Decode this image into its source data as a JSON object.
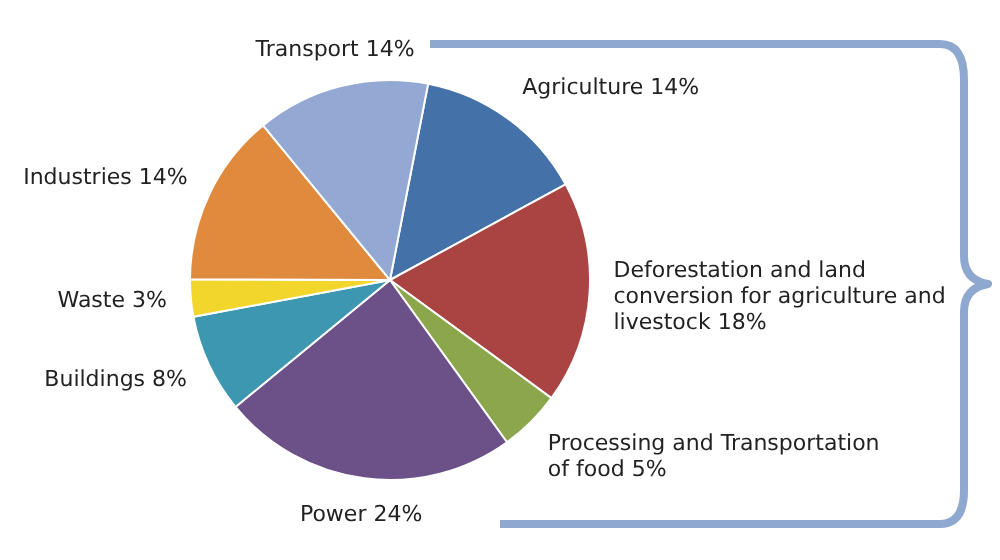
{
  "chart_data": {
    "type": "pie",
    "categories": [
      "Agriculture",
      "Deforestation and land conversion for agriculture and livestock",
      "Processing and Transportation of food",
      "Power",
      "Buildings",
      "Waste",
      "Industries",
      "Transport"
    ],
    "values": [
      14,
      18,
      5,
      24,
      8,
      3,
      14,
      14
    ],
    "value_labels": [
      "14%",
      "18%",
      "5%",
      "24%",
      "8%",
      "3%",
      "14%",
      "14%"
    ],
    "colors": [
      "#4571a9",
      "#a94443",
      "#8ba64b",
      "#6c5088",
      "#3e97b0",
      "#f3d62c",
      "#e08a3e",
      "#93a8d3"
    ],
    "legend": false
  }
}
